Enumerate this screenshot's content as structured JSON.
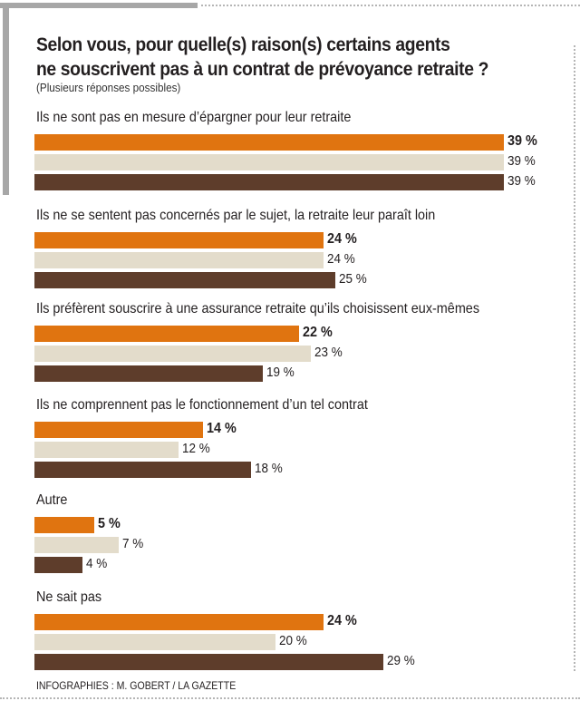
{
  "chart_data": {
    "type": "bar",
    "orientation": "horizontal",
    "title": "Selon vous, pour quelle(s) raison(s) certains agents ne souscrivent pas à un contrat de prévoyance retraite ?",
    "title_lines": [
      "Selon vous, pour quelle(s) raison(s) certains agents",
      "ne souscrivent pas à un contrat de prévoyance retraite ?"
    ],
    "subtitle": "(Plusieurs réponses possibles)",
    "categories": [
      "Ils ne sont pas en mesure d’épargner pour leur retraite",
      "Ils ne se sentent pas concernés par le sujet, la retraite leur paraît loin",
      "Ils préfèrent souscrire à une assurance retraite qu’ils choisissent eux-mêmes",
      "Ils ne comprennent pas le fonctionnement d’un tel contrat",
      "Autre",
      "Ne sait pas"
    ],
    "series": [
      {
        "color": "#e07410",
        "bold": true,
        "values": [
          39,
          24,
          22,
          14,
          5,
          24
        ]
      },
      {
        "color": "#e3dccb",
        "bold": false,
        "values": [
          39,
          24,
          23,
          12,
          7,
          20
        ]
      },
      {
        "color": "#5e3d2b",
        "bold": false,
        "values": [
          39,
          25,
          19,
          18,
          4,
          29
        ]
      }
    ],
    "value_suffix": " %",
    "xlim": [
      0,
      39
    ],
    "grid": false,
    "legend": "none",
    "credit": "INFOGRAPHIES : M. GOBERT / LA GAZETTE"
  }
}
